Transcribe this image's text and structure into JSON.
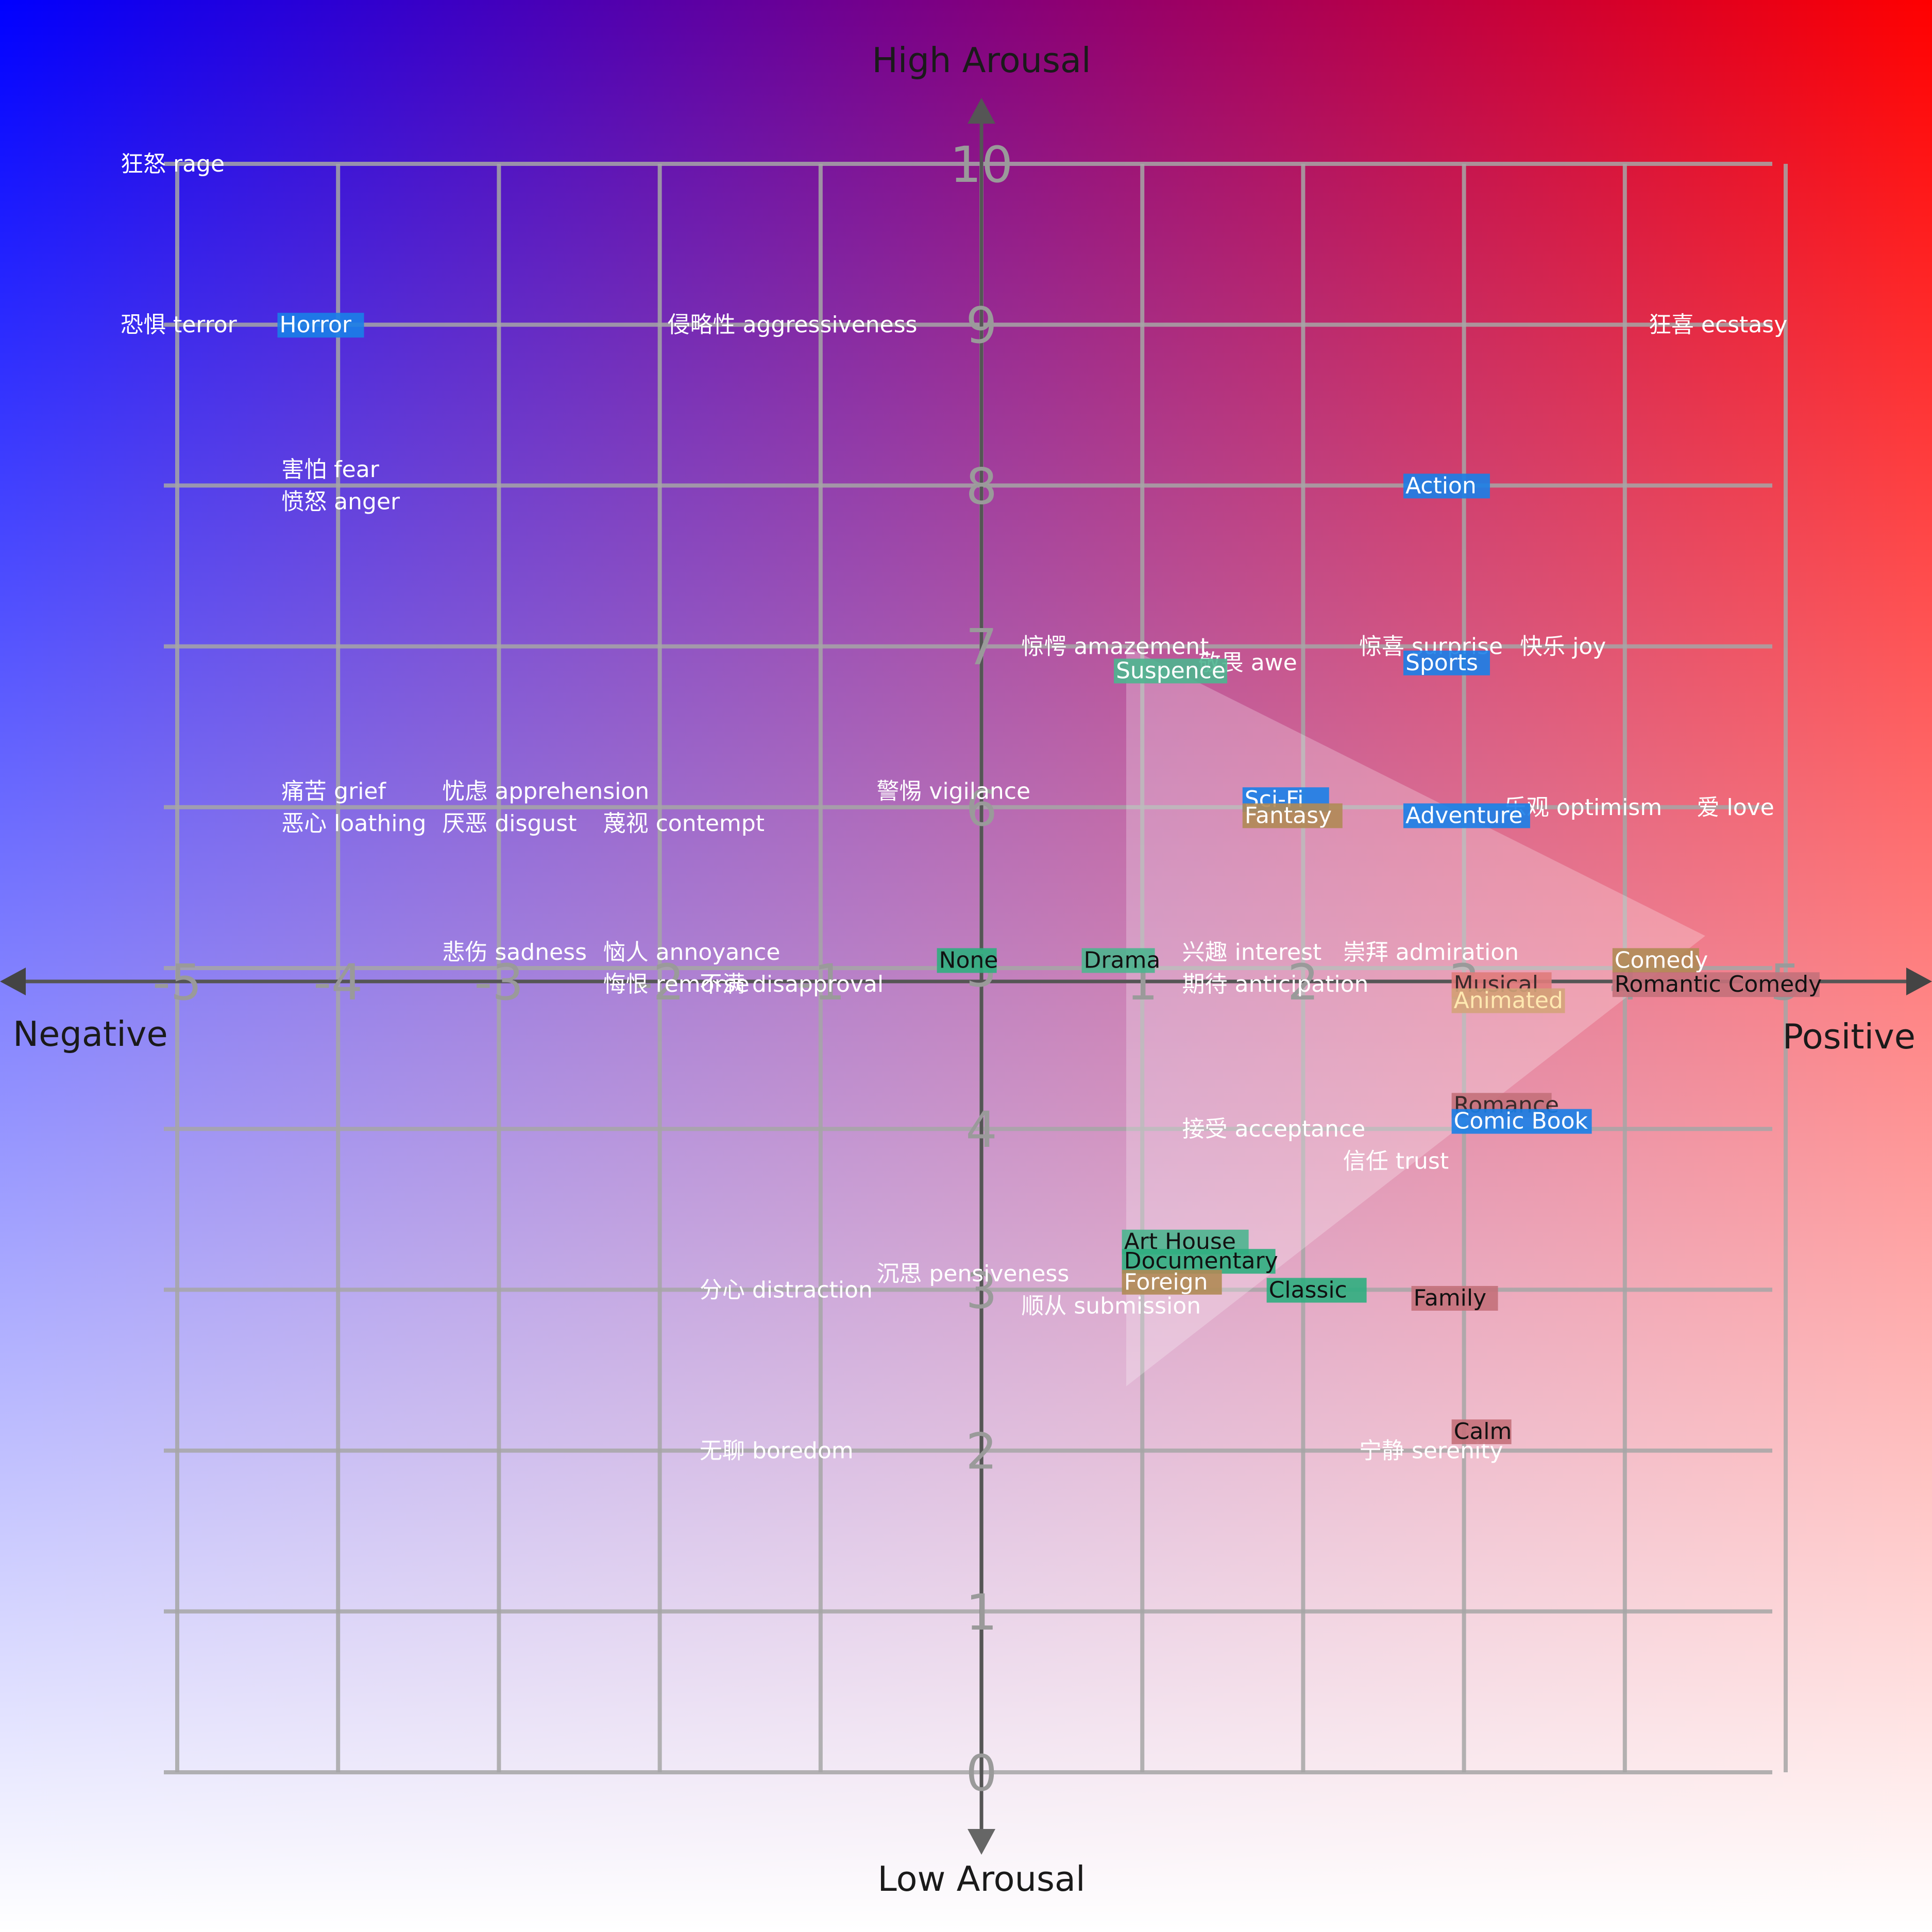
{
  "chart_data": {
    "type": "scatter",
    "title": "",
    "xlabel_negative": "Negative",
    "xlabel_positive": "Positive",
    "ylabel_high": "High Arousal",
    "ylabel_low": "Low Arousal",
    "xlim": [
      -5,
      5
    ],
    "ylim": [
      0,
      10
    ],
    "grid": true,
    "x_ticks": [
      "-5",
      "-4",
      "-3",
      "-2",
      "-1",
      "1",
      "2",
      "3",
      "4",
      "5"
    ],
    "x_tick_values": [
      -5,
      -4,
      -3,
      -2,
      -1,
      1,
      2,
      3,
      4,
      5
    ],
    "y_ticks": [
      "0",
      "1",
      "2",
      "3",
      "4",
      "5",
      "6",
      "7",
      "8",
      "9",
      "10"
    ],
    "y_tick_values": [
      0,
      1,
      2,
      3,
      4,
      5,
      6,
      7,
      8,
      9,
      10
    ],
    "highlight_triangle": {
      "vertices": [
        [
          0.9,
          7.0
        ],
        [
          0.9,
          2.4
        ],
        [
          4.5,
          5.2
        ]
      ],
      "opacity": 0.25
    },
    "emotions": [
      {
        "label": "狂怒 rage",
        "x": -5.0,
        "y": 10.0
      },
      {
        "label": "恐惧 terror",
        "x": -5.0,
        "y": 9.0
      },
      {
        "label": "侵略性 aggressiveness",
        "x": -1.6,
        "y": 9.0
      },
      {
        "label": "狂喜 ecstasy",
        "x": 4.5,
        "y": 9.0
      },
      {
        "label": "害怕 fear",
        "x": -4.0,
        "y": 8.1
      },
      {
        "label": "愤怒 anger",
        "x": -4.0,
        "y": 7.9
      },
      {
        "label": "惊愕 amazement",
        "x": 0.6,
        "y": 7.0
      },
      {
        "label": "敬畏 awe",
        "x": 1.7,
        "y": 6.9
      },
      {
        "label": "惊喜 surprise",
        "x": 2.7,
        "y": 7.0
      },
      {
        "label": "快乐 joy",
        "x": 3.7,
        "y": 7.0
      },
      {
        "label": "痛苦 grief",
        "x": -4.0,
        "y": 6.1
      },
      {
        "label": "忧虑 apprehension",
        "x": -3.0,
        "y": 6.1
      },
      {
        "label": "警惕 vigilance",
        "x": -0.3,
        "y": 6.1
      },
      {
        "label": "恶心 loathing",
        "x": -4.0,
        "y": 5.9
      },
      {
        "label": "厌恶 disgust",
        "x": -3.0,
        "y": 5.9
      },
      {
        "label": "蔑视 contempt",
        "x": -2.0,
        "y": 5.9
      },
      {
        "label": "乐观 optimism",
        "x": 3.6,
        "y": 6.0
      },
      {
        "label": "爱 love",
        "x": 4.8,
        "y": 6.0
      },
      {
        "label": "悲伤 sadness",
        "x": -3.0,
        "y": 5.1
      },
      {
        "label": "恼人 annoyance",
        "x": -2.0,
        "y": 5.1
      },
      {
        "label": "兴趣 interest",
        "x": 1.6,
        "y": 5.1
      },
      {
        "label": "崇拜 admiration",
        "x": 2.6,
        "y": 5.1
      },
      {
        "label": "悔恨 remorse",
        "x": -2.0,
        "y": 4.9
      },
      {
        "label": "不满 disapproval",
        "x": -1.4,
        "y": 4.9
      },
      {
        "label": "期待 anticipation",
        "x": 1.6,
        "y": 4.9
      },
      {
        "label": "接受 acceptance",
        "x": 1.6,
        "y": 4.0
      },
      {
        "label": "信任 trust",
        "x": 2.6,
        "y": 3.8
      },
      {
        "label": "沉思 pensiveness",
        "x": -0.3,
        "y": 3.1
      },
      {
        "label": "分心 distraction",
        "x": -1.4,
        "y": 3.0
      },
      {
        "label": "顺从 submission",
        "x": 0.6,
        "y": 2.9
      },
      {
        "label": "无聊 boredom",
        "x": -1.4,
        "y": 2.0
      },
      {
        "label": "宁静 serenity",
        "x": 2.7,
        "y": 2.0
      }
    ],
    "genres": [
      {
        "label": "Horror",
        "x": -4.3,
        "y": 9.0,
        "color": "#1a7fe8",
        "text_color": "#ffffff"
      },
      {
        "label": "Action",
        "x": 2.7,
        "y": 8.0,
        "color": "#1a7fe8",
        "text_color": "#ffffff"
      },
      {
        "label": "Suspence",
        "x": 0.9,
        "y": 6.85,
        "color": "#4cb58f",
        "text_color": "#ffffff"
      },
      {
        "label": "Sports",
        "x": 2.7,
        "y": 6.9,
        "color": "#1a7fe8",
        "text_color": "#ffffff"
      },
      {
        "label": "Sci-Fi",
        "x": 1.7,
        "y": 6.05,
        "color": "#1a7fe8",
        "text_color": "#ffffff"
      },
      {
        "label": "Fantasy",
        "x": 1.7,
        "y": 5.95,
        "color": "#b08a55",
        "text_color": "#ffffff"
      },
      {
        "label": "Adventure",
        "x": 2.7,
        "y": 5.95,
        "color": "#1a7fe8",
        "text_color": "#ffffff"
      },
      {
        "label": "None",
        "x": -0.2,
        "y": 5.05,
        "color": "#2fae80",
        "text_color": "#111111"
      },
      {
        "label": "Drama",
        "x": 0.7,
        "y": 5.05,
        "color": "#4cb58f",
        "text_color": "#111111"
      },
      {
        "label": "Comedy",
        "x": 4.0,
        "y": 5.05,
        "color": "#b08a55",
        "text_color": "#ffffff"
      },
      {
        "label": "Musical",
        "x": 3.0,
        "y": 4.9,
        "color": "#e07b7b",
        "text_color": "#3a2a2a"
      },
      {
        "label": "Romantic Comedy",
        "x": 4.0,
        "y": 4.9,
        "color": "#c4707a",
        "text_color": "#111111"
      },
      {
        "label": "Animated",
        "x": 3.0,
        "y": 4.8,
        "color": "#d4a37a",
        "text_color": "#ffe8b0"
      },
      {
        "label": "Romance",
        "x": 3.0,
        "y": 4.15,
        "color": "#c4707a",
        "text_color": "#3a2a2a"
      },
      {
        "label": "Comic Book",
        "x": 3.0,
        "y": 4.05,
        "color": "#1a7fe8",
        "text_color": "#ffffff"
      },
      {
        "label": "Art House",
        "x": 0.95,
        "y": 3.3,
        "color": "#4cb58f",
        "text_color": "#111111"
      },
      {
        "label": "Documentary",
        "x": 0.95,
        "y": 3.18,
        "color": "#2fae80",
        "text_color": "#111111"
      },
      {
        "label": "Foreign",
        "x": 0.95,
        "y": 3.05,
        "color": "#b08a55",
        "text_color": "#ffffff"
      },
      {
        "label": "Classic",
        "x": 1.85,
        "y": 3.0,
        "color": "#2fae80",
        "text_color": "#111111"
      },
      {
        "label": "Family",
        "x": 2.75,
        "y": 2.95,
        "color": "#c4707a",
        "text_color": "#111111"
      },
      {
        "label": "Calm",
        "x": 3.0,
        "y": 2.12,
        "color": "#c4707a",
        "text_color": "#111111"
      }
    ]
  }
}
